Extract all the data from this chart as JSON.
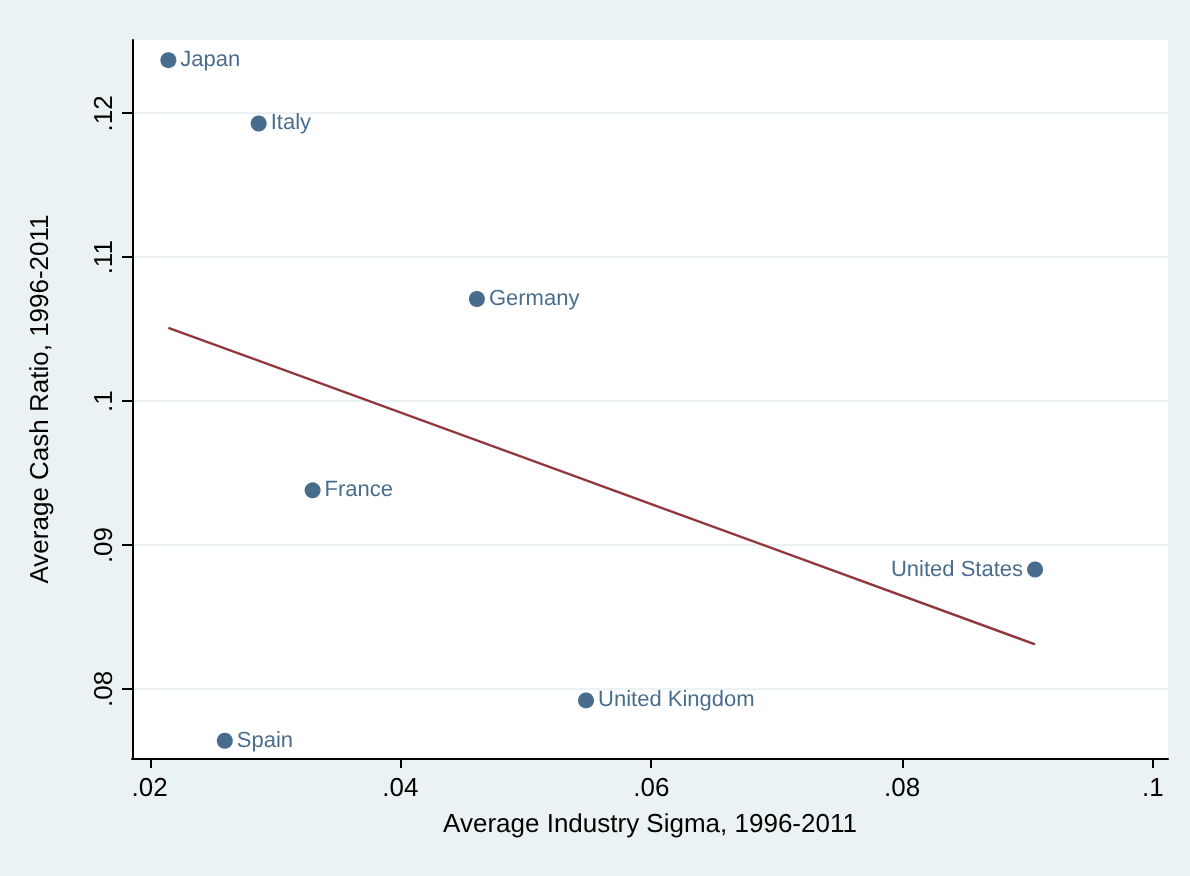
{
  "chart_data": {
    "type": "scatter",
    "xlabel": "Average Industry Sigma, 1996-2011",
    "ylabel": "Average Cash Ratio, 1996-2011",
    "series": [
      {
        "color": "#1a476f",
        "x": [
          0.0215,
          0.0287,
          0.0461,
          0.033,
          0.026,
          0.0548,
          0.0906
        ],
        "values": [
          0.1237,
          0.1193,
          0.1071,
          0.0938,
          0.0764,
          0.0792,
          0.0883
        ]
      },
      {
        "type": "line",
        "marker": "none",
        "color": "#90353b",
        "x": [
          0.0215,
          0.0906
        ],
        "values": [
          0.1051,
          0.0831
        ]
      }
    ],
    "annotations": [
      {
        "text": "Japan",
        "x": 0.0215,
        "y": 0.1237
      },
      {
        "text": "Italy",
        "x": 0.0287,
        "y": 0.1193
      },
      {
        "text": "Germany",
        "x": 0.0461,
        "y": 0.1071
      },
      {
        "text": "France",
        "x": 0.033,
        "y": 0.0938
      },
      {
        "text": "Spain",
        "x": 0.026,
        "y": 0.0764
      },
      {
        "text": "United Kingdom",
        "x": 0.0548,
        "y": 0.0792
      },
      {
        "text": "United States",
        "x": 0.0906,
        "y": 0.0883
      }
    ],
    "xlim": [
      0.0186,
      0.1012
    ],
    "ylim": [
      0.0752,
      0.1251
    ],
    "xticks": [
      {
        "value": 0.02,
        "label": ".02"
      },
      {
        "value": 0.04,
        "label": ".04"
      },
      {
        "value": 0.06,
        "label": ".06"
      },
      {
        "value": 0.08,
        "label": ".08"
      },
      {
        "value": 0.1,
        "label": ".1"
      }
    ],
    "yticks": [
      {
        "value": 0.08,
        "label": ".08"
      },
      {
        "value": 0.09,
        "label": ".09"
      },
      {
        "value": 0.1,
        "label": ".1"
      },
      {
        "value": 0.11,
        "label": ".11"
      },
      {
        "value": 0.12,
        "label": ".12"
      }
    ],
    "grid": "y",
    "marker": "circle"
  }
}
